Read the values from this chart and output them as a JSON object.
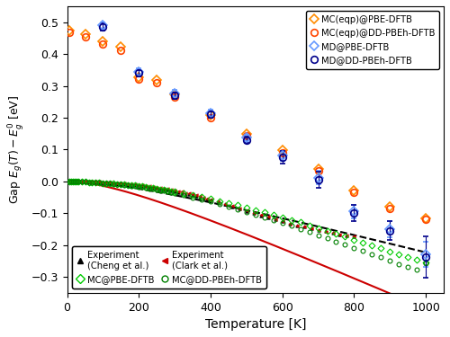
{
  "xlabel": "Temperature [K]",
  "ylabel": "Gap $E_g(T) - E_g^0$ [eV]",
  "xlim": [
    0,
    1050
  ],
  "ylim": [
    -0.35,
    0.55
  ],
  "yticks": [
    -0.3,
    -0.2,
    -0.1,
    0.0,
    0.1,
    0.2,
    0.3,
    0.4,
    0.5
  ],
  "xticks": [
    0,
    200,
    400,
    600,
    800,
    1000
  ],
  "MC_eqp_PBE": {
    "T": [
      5,
      50,
      100,
      150,
      200,
      250,
      300,
      400,
      500,
      600,
      700,
      800,
      900,
      1000
    ],
    "y": [
      0.475,
      0.463,
      0.44,
      0.422,
      0.327,
      0.317,
      0.272,
      0.207,
      0.15,
      0.097,
      0.04,
      -0.028,
      -0.08,
      -0.115
    ],
    "color": "#FF8C00",
    "marker": "D",
    "label": "MC(eqp)@PBE-DFTB"
  },
  "MC_eqp_DD": {
    "T": [
      5,
      50,
      100,
      150,
      200,
      250,
      300,
      400,
      500,
      600,
      700,
      800,
      900,
      1000
    ],
    "y": [
      0.468,
      0.455,
      0.432,
      0.412,
      0.32,
      0.31,
      0.265,
      0.2,
      0.143,
      0.09,
      0.033,
      -0.035,
      -0.085,
      -0.12
    ],
    "color": "#FF4500",
    "marker": "o",
    "label": "MC(eqp)@DD-PBEh-DFTB"
  },
  "MD_PBE": {
    "T": [
      100,
      200,
      300,
      400,
      500,
      600,
      700,
      800,
      900,
      1000
    ],
    "y": [
      0.49,
      0.345,
      0.277,
      0.215,
      0.137,
      0.08,
      0.012,
      -0.095,
      -0.15,
      -0.23
    ],
    "yerr": [
      0.01,
      0.01,
      0.01,
      0.01,
      0.01,
      0.015,
      0.02,
      0.02,
      0.025,
      0.04
    ],
    "color": "#6699FF",
    "marker": "D",
    "label": "MD@PBE-DFTB"
  },
  "MD_DD": {
    "T": [
      100,
      200,
      300,
      400,
      500,
      600,
      700,
      800,
      900,
      1000
    ],
    "y": [
      0.485,
      0.34,
      0.27,
      0.21,
      0.13,
      0.075,
      0.005,
      -0.1,
      -0.155,
      -0.237
    ],
    "yerr": [
      0.01,
      0.01,
      0.01,
      0.01,
      0.01,
      0.02,
      0.025,
      0.025,
      0.03,
      0.065
    ],
    "color": "#00008B",
    "marker": "o",
    "label": "MD@DD-PBEh-DFTB"
  },
  "MC_PBE": {
    "T": [
      5,
      10,
      15,
      20,
      25,
      30,
      40,
      50,
      60,
      70,
      80,
      90,
      100,
      110,
      120,
      130,
      140,
      150,
      160,
      170,
      180,
      190,
      200,
      210,
      220,
      230,
      240,
      250,
      260,
      270,
      280,
      290,
      300,
      325,
      350,
      375,
      400,
      425,
      450,
      475,
      500,
      525,
      550,
      575,
      600,
      625,
      650,
      675,
      700,
      725,
      750,
      775,
      800,
      825,
      850,
      875,
      900,
      925,
      950,
      975,
      1000
    ],
    "y": [
      0.0,
      0.0,
      -0.001,
      -0.001,
      -0.001,
      -0.001,
      -0.002,
      -0.002,
      -0.003,
      -0.003,
      -0.004,
      -0.004,
      -0.005,
      -0.006,
      -0.006,
      -0.007,
      -0.008,
      -0.009,
      -0.01,
      -0.011,
      -0.012,
      -0.013,
      -0.015,
      -0.016,
      -0.018,
      -0.019,
      -0.021,
      -0.023,
      -0.025,
      -0.027,
      -0.029,
      -0.031,
      -0.033,
      -0.038,
      -0.043,
      -0.049,
      -0.055,
      -0.062,
      -0.068,
      -0.075,
      -0.082,
      -0.09,
      -0.097,
      -0.105,
      -0.113,
      -0.121,
      -0.129,
      -0.138,
      -0.147,
      -0.156,
      -0.165,
      -0.174,
      -0.183,
      -0.192,
      -0.201,
      -0.21,
      -0.22,
      -0.229,
      -0.238,
      -0.247,
      -0.255
    ],
    "color": "#00CC00",
    "marker": "D",
    "label": "MC@PBE-DFTB",
    "markersize": 3.5
  },
  "MC_DD": {
    "T": [
      5,
      10,
      15,
      20,
      25,
      30,
      40,
      50,
      60,
      70,
      80,
      90,
      100,
      110,
      120,
      130,
      140,
      150,
      160,
      170,
      180,
      190,
      200,
      210,
      220,
      230,
      240,
      250,
      260,
      270,
      280,
      290,
      300,
      325,
      350,
      375,
      400,
      425,
      450,
      475,
      500,
      525,
      550,
      575,
      600,
      625,
      650,
      675,
      700,
      725,
      750,
      775,
      800,
      825,
      850,
      875,
      900,
      925,
      950,
      975,
      1000
    ],
    "y": [
      0.0,
      0.0,
      -0.001,
      -0.001,
      -0.001,
      -0.001,
      -0.002,
      -0.002,
      -0.003,
      -0.003,
      -0.004,
      -0.004,
      -0.005,
      -0.006,
      -0.007,
      -0.008,
      -0.009,
      -0.01,
      -0.011,
      -0.012,
      -0.014,
      -0.015,
      -0.017,
      -0.018,
      -0.02,
      -0.022,
      -0.024,
      -0.026,
      -0.028,
      -0.03,
      -0.032,
      -0.035,
      -0.037,
      -0.044,
      -0.05,
      -0.057,
      -0.064,
      -0.072,
      -0.08,
      -0.088,
      -0.096,
      -0.105,
      -0.113,
      -0.122,
      -0.131,
      -0.14,
      -0.15,
      -0.159,
      -0.169,
      -0.179,
      -0.189,
      -0.199,
      -0.209,
      -0.219,
      -0.229,
      -0.239,
      -0.249,
      -0.259,
      -0.269,
      -0.278,
      -0.258
    ],
    "color": "#008000",
    "marker": "o",
    "label": "MC@DD-PBEh-DFTB",
    "markersize": 3.5
  },
  "exp_cheng": {
    "T": [
      10,
      20,
      30,
      40,
      50,
      60,
      70,
      80,
      90,
      100,
      110,
      120,
      130,
      140,
      150,
      160,
      170,
      180,
      190,
      200,
      210,
      220,
      230,
      240,
      250,
      260,
      270,
      280,
      290,
      300,
      310,
      320,
      330,
      340,
      350,
      360,
      370,
      380,
      390,
      400,
      420,
      440,
      460,
      480,
      500,
      520,
      540,
      560,
      580,
      600,
      620,
      640,
      660,
      680,
      700,
      720,
      740,
      760,
      780,
      800
    ],
    "y": [
      0.0,
      0.0,
      -0.001,
      -0.001,
      -0.001,
      -0.002,
      -0.002,
      -0.002,
      -0.003,
      -0.003,
      -0.004,
      -0.005,
      -0.005,
      -0.006,
      -0.007,
      -0.008,
      -0.009,
      -0.01,
      -0.011,
      -0.013,
      -0.014,
      -0.016,
      -0.017,
      -0.019,
      -0.021,
      -0.023,
      -0.025,
      -0.027,
      -0.029,
      -0.031,
      -0.034,
      -0.036,
      -0.039,
      -0.041,
      -0.044,
      -0.047,
      -0.05,
      -0.053,
      -0.056,
      -0.059,
      -0.065,
      -0.072,
      -0.079,
      -0.086,
      -0.093,
      -0.1,
      -0.107,
      -0.113,
      -0.12,
      -0.126,
      -0.132,
      -0.138,
      -0.143,
      -0.148,
      -0.153,
      -0.157,
      -0.162,
      -0.166,
      -0.17,
      -0.174
    ],
    "color": "black",
    "marker": "^",
    "label": "Experiment\n(Cheng et al.)"
  },
  "exp_clark": {
    "T": [
      10,
      20,
      30,
      40,
      50,
      60,
      70,
      80,
      90,
      100,
      110,
      120,
      130,
      140,
      150,
      160,
      170,
      180,
      190,
      200,
      210,
      220,
      230,
      240,
      250,
      260,
      270,
      280,
      290,
      300,
      310,
      320,
      330,
      340,
      350,
      360,
      370,
      380,
      390,
      400,
      420,
      440,
      460,
      480,
      500,
      520,
      540,
      560,
      580,
      600,
      620,
      640,
      660,
      680,
      700,
      720,
      740,
      760,
      780,
      800
    ],
    "y": [
      0.0,
      0.0,
      -0.001,
      -0.001,
      -0.001,
      -0.001,
      -0.002,
      -0.002,
      -0.002,
      -0.003,
      -0.003,
      -0.004,
      -0.005,
      -0.005,
      -0.006,
      -0.007,
      -0.008,
      -0.009,
      -0.01,
      -0.011,
      -0.013,
      -0.014,
      -0.015,
      -0.017,
      -0.019,
      -0.02,
      -0.022,
      -0.024,
      -0.026,
      -0.028,
      -0.031,
      -0.033,
      -0.036,
      -0.038,
      -0.041,
      -0.044,
      -0.047,
      -0.05,
      -0.053,
      -0.057,
      -0.063,
      -0.07,
      -0.077,
      -0.084,
      -0.091,
      -0.098,
      -0.105,
      -0.112,
      -0.119,
      -0.126,
      -0.132,
      -0.138,
      -0.143,
      -0.148,
      -0.153,
      -0.158,
      -0.162,
      -0.166,
      -0.17,
      -0.174
    ],
    "color": "#CC0000",
    "marker": "<",
    "label": "Experiment\n(Clark et al.)"
  },
  "fit_cheng_color": "black",
  "fit_cheng_linestyle": "--",
  "fit_clark_color": "#CC0000",
  "fit_clark_linestyle": "-"
}
